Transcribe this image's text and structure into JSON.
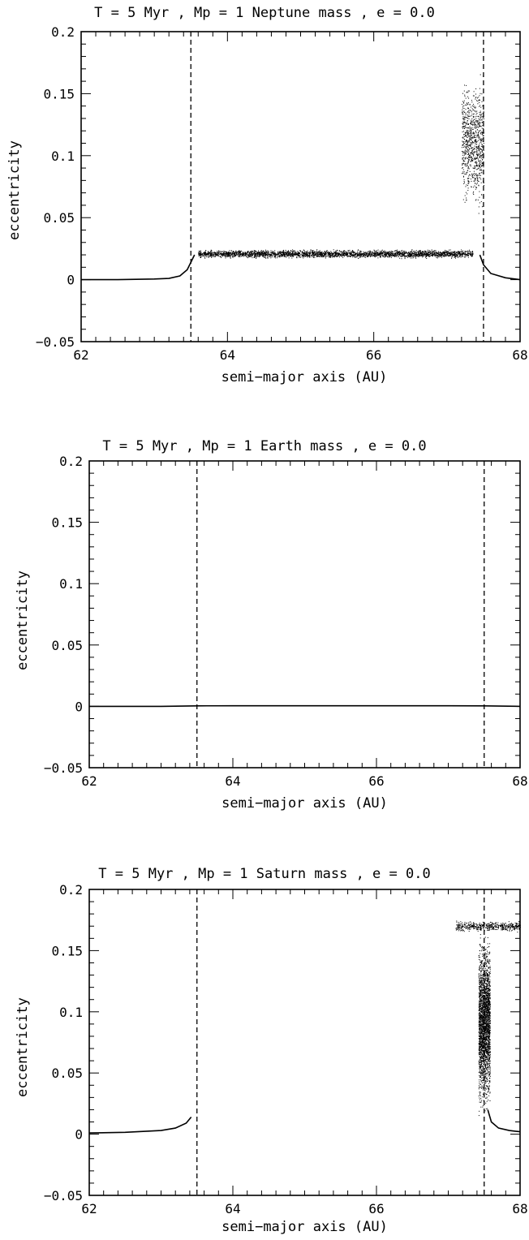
{
  "chart_data": [
    {
      "type": "scatter",
      "title": "T = 5 Myr , Mp = 1 Neptune mass , e = 0.0",
      "xlabel": "semi−major axis (AU)",
      "ylabel": "eccentricity",
      "xlim": [
        62,
        68
      ],
      "ylim": [
        -0.05,
        0.2
      ],
      "xticks": [
        "62",
        "64",
        "66",
        "68"
      ],
      "yticks": [
        "−0.05",
        "0",
        "0.05",
        "0.1",
        "0.15",
        "0.2"
      ],
      "vlines": [
        63.5,
        67.5
      ],
      "series": [
        {
          "kind": "curve",
          "points": [
            [
              62.0,
              0.0
            ],
            [
              62.5,
              0.0
            ],
            [
              63.0,
              0.0005
            ],
            [
              63.2,
              0.001
            ],
            [
              63.35,
              0.003
            ],
            [
              63.45,
              0.008
            ],
            [
              63.5,
              0.014
            ],
            [
              63.55,
              0.02
            ]
          ]
        },
        {
          "kind": "band",
          "x_range": [
            63.6,
            67.35
          ],
          "y_center": 0.021,
          "y_spread": 0.004,
          "points": 3000
        },
        {
          "kind": "band",
          "x_range": [
            67.2,
            67.5
          ],
          "y_center": 0.11,
          "y_spread": 0.06,
          "points": 900
        },
        {
          "kind": "curve",
          "points": [
            [
              67.45,
              0.02
            ],
            [
              67.5,
              0.012
            ],
            [
              67.6,
              0.005
            ],
            [
              67.8,
              0.0015
            ],
            [
              68.0,
              0.0
            ]
          ]
        }
      ]
    },
    {
      "type": "scatter",
      "title": "T = 5 Myr , Mp = 1 Earth mass , e = 0.0",
      "xlabel": "semi−major axis (AU)",
      "ylabel": "eccentricity",
      "xlim": [
        62,
        68
      ],
      "ylim": [
        -0.05,
        0.2
      ],
      "xticks": [
        "62",
        "64",
        "66",
        "68"
      ],
      "yticks": [
        "−0.05",
        "0",
        "0.05",
        "0.1",
        "0.15",
        "0.2"
      ],
      "vlines": [
        63.5,
        67.5
      ],
      "series": [
        {
          "kind": "curve",
          "points": [
            [
              62.0,
              0.0
            ],
            [
              63.0,
              0.0
            ],
            [
              63.5,
              0.0004
            ],
            [
              64.0,
              0.0005
            ],
            [
              67.0,
              0.0005
            ],
            [
              67.5,
              0.0004
            ],
            [
              68.0,
              0.0
            ]
          ]
        }
      ]
    },
    {
      "type": "scatter",
      "title": "T = 5 Myr , Mp = 1 Saturn mass , e = 0.0",
      "xlabel": "semi−major axis (AU)",
      "ylabel": "eccentricity",
      "xlim": [
        62,
        68
      ],
      "ylim": [
        -0.05,
        0.2
      ],
      "xticks": [
        "62",
        "64",
        "66",
        "68"
      ],
      "yticks": [
        "−0.05",
        "0",
        "0.05",
        "0.1",
        "0.15",
        "0.2"
      ],
      "vlines": [
        63.5,
        67.5
      ],
      "series": [
        {
          "kind": "curve",
          "points": [
            [
              62.0,
              0.001
            ],
            [
              62.5,
              0.0015
            ],
            [
              63.0,
              0.003
            ],
            [
              63.2,
              0.005
            ],
            [
              63.35,
              0.009
            ],
            [
              63.42,
              0.014
            ]
          ]
        },
        {
          "kind": "band",
          "x_range": [
            67.42,
            67.58
          ],
          "y_center": 0.09,
          "y_spread": 0.08,
          "points": 2500
        },
        {
          "kind": "band",
          "x_range": [
            67.1,
            68.0
          ],
          "y_center": 0.17,
          "y_spread": 0.005,
          "points": 500
        },
        {
          "kind": "curve",
          "points": [
            [
              67.55,
              0.02
            ],
            [
              67.6,
              0.01
            ],
            [
              67.7,
              0.005
            ],
            [
              67.85,
              0.003
            ],
            [
              68.0,
              0.002
            ]
          ]
        }
      ]
    }
  ]
}
